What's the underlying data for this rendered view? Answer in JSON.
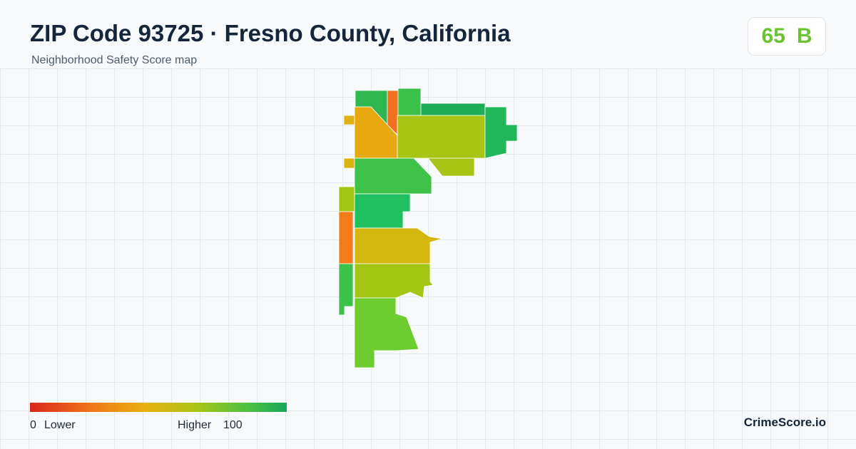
{
  "header": {
    "title": "ZIP Code 93725 · Fresno County, California",
    "subtitle": "Neighborhood Safety Score map"
  },
  "score": {
    "value": 65,
    "grade": "B"
  },
  "legend": {
    "min": 0,
    "min_label": "Lower",
    "max_label": "Higher",
    "max": 100
  },
  "brand": "CrimeScore.io"
}
